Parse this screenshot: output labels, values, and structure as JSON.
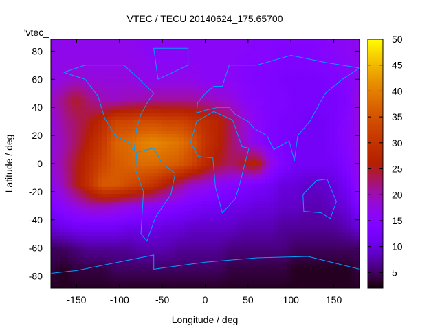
{
  "chart_data": {
    "type": "heatmap",
    "title": "VTEC / TECU 20140624_175.65700",
    "xlabel": "Longitude / deg",
    "ylabel": "Latitude / deg",
    "legend_entry": "'vtec_",
    "legend_placement": "top-left",
    "xlim": [
      -180,
      180
    ],
    "ylim": [
      -88.5,
      88.5
    ],
    "xticks": [
      "-150",
      "-100",
      "-50",
      "0",
      "50",
      "100",
      "150"
    ],
    "xtick_values": [
      -150,
      -100,
      -50,
      0,
      50,
      100,
      150
    ],
    "yticks": [
      "-80",
      "-60",
      "-40",
      "-20",
      "0",
      "20",
      "40",
      "60",
      "80"
    ],
    "ytick_values": [
      -80,
      -60,
      -40,
      -20,
      0,
      20,
      40,
      60,
      80
    ],
    "colorbar": {
      "range": [
        2,
        50
      ],
      "ticks": [
        "5",
        "10",
        "15",
        "20",
        "25",
        "30",
        "35",
        "40",
        "45",
        "50"
      ],
      "tick_values": [
        5,
        10,
        15,
        20,
        25,
        30,
        35,
        40,
        45,
        50
      ],
      "palette": "black-blue-violet-yellow"
    },
    "grid_lon": [
      -180,
      -165,
      -150,
      -135,
      -120,
      -105,
      -90,
      -75,
      -60,
      -45,
      -30,
      -15,
      0,
      15,
      30,
      45,
      60,
      75,
      90,
      105,
      120,
      135,
      150,
      165,
      180
    ],
    "grid_lat": [
      90,
      75,
      60,
      45,
      30,
      15,
      0,
      -15,
      -30,
      -45,
      -60,
      -75,
      -90
    ],
    "values": [
      [
        17,
        17,
        17,
        17,
        17,
        17,
        17,
        16,
        16,
        16,
        16,
        16,
        16,
        16,
        16,
        16,
        15,
        15,
        15,
        15,
        15,
        15,
        16,
        16,
        17
      ],
      [
        17,
        17,
        17,
        17,
        17,
        17,
        17,
        17,
        16,
        16,
        16,
        16,
        16,
        16,
        16,
        15,
        15,
        15,
        14,
        14,
        14,
        15,
        15,
        16,
        17
      ],
      [
        17,
        18,
        19,
        18,
        18,
        18,
        18,
        17,
        17,
        17,
        17,
        17,
        16,
        16,
        16,
        15,
        14,
        14,
        13,
        13,
        13,
        13,
        14,
        15,
        17
      ],
      [
        19,
        22,
        25,
        22,
        20,
        19,
        20,
        20,
        21,
        21,
        21,
        21,
        20,
        19,
        18,
        16,
        15,
        14,
        14,
        13,
        13,
        13,
        13,
        14,
        19
      ],
      [
        18,
        21,
        23,
        25,
        28,
        33,
        33,
        34,
        34,
        33,
        33,
        31,
        29,
        27,
        23,
        19,
        16,
        14,
        13,
        13,
        12,
        12,
        13,
        15,
        18
      ],
      [
        18,
        20,
        23,
        27,
        31,
        37,
        38,
        40,
        41,
        40,
        39,
        36,
        30,
        27,
        23,
        19,
        16,
        14,
        13,
        12,
        12,
        12,
        13,
        15,
        18
      ],
      [
        18,
        21,
        25,
        29,
        33,
        36,
        37,
        38,
        38,
        37,
        36,
        33,
        28,
        25,
        23,
        25,
        27,
        18,
        14,
        12,
        12,
        12,
        12,
        14,
        18
      ],
      [
        17,
        20,
        25,
        30,
        36,
        36,
        34,
        32,
        30,
        26,
        22,
        19,
        18,
        16,
        15,
        14,
        13,
        12,
        10,
        10,
        9,
        9,
        10,
        12,
        17
      ],
      [
        14,
        16,
        18,
        20,
        20,
        19,
        18,
        17,
        16,
        15,
        14,
        13,
        12,
        12,
        11,
        11,
        10,
        10,
        9,
        9,
        8,
        8,
        9,
        10,
        14
      ],
      [
        10,
        11,
        12,
        12,
        12,
        12,
        11,
        11,
        11,
        10,
        10,
        9,
        9,
        9,
        9,
        8,
        8,
        8,
        7,
        7,
        7,
        7,
        7,
        8,
        10
      ],
      [
        5,
        5,
        6,
        7,
        7,
        7,
        7,
        8,
        8,
        8,
        7,
        7,
        7,
        7,
        6,
        6,
        6,
        6,
        6,
        5,
        5,
        5,
        5,
        5,
        5
      ],
      [
        4,
        3,
        4,
        4,
        4,
        5,
        5,
        5,
        5,
        5,
        5,
        5,
        5,
        5,
        4,
        4,
        4,
        4,
        4,
        3,
        3,
        3,
        3,
        3,
        4
      ],
      [
        3,
        3,
        3,
        3,
        3,
        3,
        3,
        3,
        3,
        3,
        3,
        3,
        3,
        3,
        3,
        3,
        3,
        3,
        3,
        3,
        3,
        3,
        3,
        3,
        3
      ]
    ],
    "coastlines": [
      [
        [
          -165,
          65
        ],
        [
          -140,
          60
        ],
        [
          -125,
          48
        ],
        [
          -117,
          32
        ],
        [
          -105,
          20
        ],
        [
          -90,
          15
        ],
        [
          -83,
          9
        ],
        [
          -80,
          25
        ],
        [
          -75,
          35
        ],
        [
          -66,
          45
        ],
        [
          -60,
          50
        ],
        [
          -80,
          62
        ],
        [
          -95,
          70
        ],
        [
          -140,
          70
        ],
        [
          -165,
          65
        ]
      ],
      [
        [
          -55,
          60
        ],
        [
          -20,
          70
        ],
        [
          -20,
          82
        ],
        [
          -60,
          82
        ],
        [
          -55,
          60
        ]
      ],
      [
        [
          -80,
          8
        ],
        [
          -60,
          11
        ],
        [
          -50,
          0
        ],
        [
          -35,
          -7
        ],
        [
          -40,
          -22
        ],
        [
          -58,
          -38
        ],
        [
          -68,
          -55
        ],
        [
          -75,
          -50
        ],
        [
          -72,
          -20
        ],
        [
          -81,
          -5
        ],
        [
          -80,
          8
        ]
      ],
      [
        [
          -17,
          15
        ],
        [
          -10,
          30
        ],
        [
          10,
          37
        ],
        [
          32,
          31
        ],
        [
          43,
          12
        ],
        [
          51,
          11
        ],
        [
          40,
          -15
        ],
        [
          35,
          -25
        ],
        [
          20,
          -35
        ],
        [
          12,
          -17
        ],
        [
          9,
          4
        ],
        [
          -8,
          5
        ],
        [
          -17,
          15
        ]
      ],
      [
        [
          -10,
          36
        ],
        [
          -9,
          43
        ],
        [
          0,
          50
        ],
        [
          10,
          55
        ],
        [
          20,
          55
        ],
        [
          28,
          70
        ],
        [
          60,
          70
        ],
        [
          100,
          77
        ],
        [
          140,
          72
        ],
        [
          180,
          68
        ],
        [
          160,
          60
        ],
        [
          140,
          50
        ],
        [
          122,
          30
        ],
        [
          108,
          20
        ],
        [
          104,
          2
        ],
        [
          98,
          16
        ],
        [
          80,
          10
        ],
        [
          72,
          20
        ],
        [
          57,
          25
        ],
        [
          50,
          30
        ],
        [
          35,
          35
        ],
        [
          28,
          40
        ],
        [
          15,
          40
        ],
        [
          0,
          38
        ],
        [
          -10,
          36
        ]
      ],
      [
        [
          114,
          -22
        ],
        [
          130,
          -12
        ],
        [
          142,
          -11
        ],
        [
          153,
          -27
        ],
        [
          146,
          -39
        ],
        [
          135,
          -35
        ],
        [
          115,
          -34
        ],
        [
          114,
          -22
        ]
      ],
      [
        [
          -180,
          -78
        ],
        [
          -150,
          -76
        ],
        [
          -60,
          -65
        ],
        [
          -60,
          -75
        ],
        [
          0,
          -70
        ],
        [
          60,
          -67
        ],
        [
          120,
          -66
        ],
        [
          180,
          -75
        ]
      ]
    ]
  }
}
